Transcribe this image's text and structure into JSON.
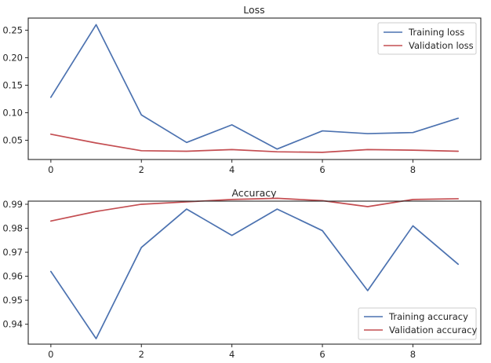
{
  "chart_data": [
    {
      "type": "line",
      "title": "Loss",
      "xlabel": "",
      "ylabel": "",
      "x": [
        0,
        1,
        2,
        3,
        4,
        5,
        6,
        7,
        8,
        9
      ],
      "xlim": [
        -0.5,
        9.5
      ],
      "ylim": [
        0.015,
        0.272
      ],
      "xticks": [
        0,
        2,
        4,
        6,
        8
      ],
      "yticks": [
        0.05,
        0.1,
        0.15,
        0.2,
        0.25
      ],
      "ytick_labels": [
        "0.05",
        "0.10",
        "0.15",
        "0.20",
        "0.25"
      ],
      "grid": false,
      "legend_position": "top-right",
      "series": [
        {
          "name": "Training loss",
          "color": "#4c72b0",
          "values": [
            0.128,
            0.26,
            0.096,
            0.046,
            0.078,
            0.034,
            0.067,
            0.062,
            0.064,
            0.09
          ]
        },
        {
          "name": "Validation loss",
          "color": "#c44e52",
          "values": [
            0.061,
            0.045,
            0.031,
            0.03,
            0.033,
            0.029,
            0.028,
            0.033,
            0.032,
            0.03
          ]
        }
      ]
    },
    {
      "type": "line",
      "title": "Accuracy",
      "xlabel": "",
      "ylabel": "",
      "x": [
        0,
        1,
        2,
        3,
        4,
        5,
        6,
        7,
        8,
        9
      ],
      "xlim": [
        -0.5,
        9.5
      ],
      "ylim": [
        0.9317,
        0.9913
      ],
      "xticks": [
        0,
        2,
        4,
        6,
        8
      ],
      "yticks": [
        0.94,
        0.95,
        0.96,
        0.97,
        0.98,
        0.99
      ],
      "ytick_labels": [
        "0.94",
        "0.95",
        "0.96",
        "0.97",
        "0.98",
        "0.99"
      ],
      "grid": false,
      "legend_position": "bottom-right",
      "series": [
        {
          "name": "Training accuracy",
          "color": "#4c72b0",
          "values": [
            0.962,
            0.934,
            0.972,
            0.988,
            0.977,
            0.988,
            0.979,
            0.954,
            0.981,
            0.965
          ]
        },
        {
          "name": "Validation accuracy",
          "color": "#c44e52",
          "values": [
            0.983,
            0.987,
            0.99,
            0.991,
            0.992,
            0.9925,
            0.9915,
            0.989,
            0.992,
            0.9923
          ]
        }
      ]
    }
  ]
}
